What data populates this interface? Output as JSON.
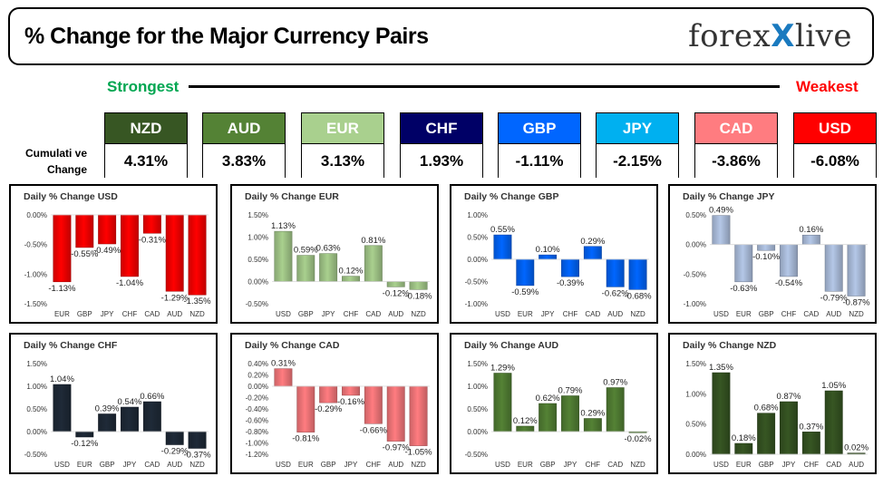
{
  "header": {
    "title": "% Change for the Major Currency Pairs",
    "logo_left": "forex",
    "logo_x": "X",
    "logo_right": "live"
  },
  "strongest_label": "Strongest",
  "weakest_label": "Weakest",
  "cumulative_label_1": "Cumulati ve",
  "cumulative_label_2": "Change",
  "cumulative": [
    {
      "currency": "NZD",
      "value": "4.31%",
      "color": "#375623"
    },
    {
      "currency": "AUD",
      "value": "3.83%",
      "color": "#548235"
    },
    {
      "currency": "EUR",
      "value": "3.13%",
      "color": "#a9d08e"
    },
    {
      "currency": "CHF",
      "value": "1.93%",
      "color": "#000066"
    },
    {
      "currency": "GBP",
      "value": "-1.11%",
      "color": "#0066ff"
    },
    {
      "currency": "JPY",
      "value": "-2.15%",
      "color": "#00b0f0"
    },
    {
      "currency": "CAD",
      "value": "-3.86%",
      "color": "#ff7c80"
    },
    {
      "currency": "USD",
      "value": "-6.08%",
      "color": "#ff0000"
    }
  ],
  "chart_data": [
    {
      "type": "bar",
      "title": "Daily % Change USD",
      "color": "#ff0000",
      "categories": [
        "EUR",
        "GBP",
        "JPY",
        "CHF",
        "CAD",
        "AUD",
        "NZD"
      ],
      "values": [
        -1.13,
        -0.55,
        -0.49,
        -1.04,
        -0.31,
        -1.29,
        -1.35
      ],
      "labels": [
        "-1.13%",
        "-0.55%",
        "-0.49%",
        "-1.04%",
        "-0.31%",
        "-1.29%",
        "-1.35%"
      ],
      "ylim": [
        -1.5,
        0
      ],
      "yticks": [
        0,
        -0.5,
        -1.0,
        -1.5
      ],
      "ytick_labels": [
        "0.00%",
        "-0.50%",
        "-1.00%",
        "-1.50%"
      ]
    },
    {
      "type": "bar",
      "title": "Daily % Change EUR",
      "color": "#a9d08e",
      "categories": [
        "USD",
        "GBP",
        "JPY",
        "CHF",
        "CAD",
        "AUD",
        "NZD"
      ],
      "values": [
        1.13,
        0.59,
        0.63,
        0.12,
        0.81,
        -0.12,
        -0.18
      ],
      "labels": [
        "1.13%",
        "0.59%",
        "0.63%",
        "0.12%",
        "0.81%",
        "-0.12%",
        "-0.18%"
      ],
      "ylim": [
        -0.5,
        1.5
      ],
      "yticks": [
        1.5,
        1.0,
        0.5,
        0,
        -0.5
      ],
      "ytick_labels": [
        "1.50%",
        "1.00%",
        "0.50%",
        "0.00%",
        "-0.50%"
      ]
    },
    {
      "type": "bar",
      "title": "Daily % Change GBP",
      "color": "#0066ff",
      "categories": [
        "USD",
        "EUR",
        "JPY",
        "CHF",
        "CAD",
        "AUD",
        "NZD"
      ],
      "values": [
        0.55,
        -0.59,
        0.1,
        -0.39,
        0.29,
        -0.62,
        -0.68
      ],
      "labels": [
        "0.55%",
        "-0.59%",
        "0.10%",
        "-0.39%",
        "0.29%",
        "-0.62%",
        "-0.68%"
      ],
      "ylim": [
        -1.0,
        1.0
      ],
      "yticks": [
        1.0,
        0.5,
        0,
        -0.5,
        -1.0
      ],
      "ytick_labels": [
        "1.00%",
        "0.50%",
        "0.00%",
        "-0.50%",
        "-1.00%"
      ]
    },
    {
      "type": "bar",
      "title": "Daily % Change JPY",
      "color": "#b4c7e7",
      "categories": [
        "USD",
        "EUR",
        "GBP",
        "CHF",
        "CAD",
        "AUD",
        "NZD"
      ],
      "values": [
        0.49,
        -0.63,
        -0.1,
        -0.54,
        0.16,
        -0.79,
        -0.87
      ],
      "labels": [
        "0.49%",
        "-0.63%",
        "-0.10%",
        "-0.54%",
        "0.16%",
        "-0.79%",
        "-0.87%"
      ],
      "ylim": [
        -1.0,
        0.5
      ],
      "yticks": [
        0.5,
        0,
        -0.5,
        -1.0
      ],
      "ytick_labels": [
        "0.50%",
        "0.00%",
        "-0.50%",
        "-1.00%"
      ]
    },
    {
      "type": "bar",
      "title": "Daily % Change CHF",
      "color": "#1f2a38",
      "categories": [
        "USD",
        "EUR",
        "GBP",
        "JPY",
        "CAD",
        "AUD",
        "NZD"
      ],
      "values": [
        1.04,
        -0.12,
        0.39,
        0.54,
        0.66,
        -0.29,
        -0.37
      ],
      "labels": [
        "1.04%",
        "-0.12%",
        "0.39%",
        "0.54%",
        "0.66%",
        "-0.29%",
        "-0.37%"
      ],
      "ylim": [
        -0.5,
        1.5
      ],
      "yticks": [
        1.5,
        1.0,
        0.5,
        0,
        -0.5
      ],
      "ytick_labels": [
        "1.50%",
        "1.00%",
        "0.50%",
        "0.00%",
        "-0.50%"
      ]
    },
    {
      "type": "bar",
      "title": "Daily % Change CAD",
      "color": "#ff7c80",
      "categories": [
        "USD",
        "EUR",
        "GBP",
        "JPY",
        "CHF",
        "AUD",
        "NZD"
      ],
      "values": [
        0.31,
        -0.81,
        -0.29,
        -0.16,
        -0.66,
        -0.97,
        -1.05
      ],
      "labels": [
        "0.31%",
        "-0.81%",
        "-0.29%",
        "-0.16%",
        "-0.66%",
        "-0.97%",
        "-1.05%"
      ],
      "ylim": [
        -1.2,
        0.4
      ],
      "yticks": [
        0.4,
        0.2,
        0,
        -0.2,
        -0.4,
        -0.6,
        -0.8,
        -1.0,
        -1.2
      ],
      "ytick_labels": [
        "0.40%",
        "0.20%",
        "0.00%",
        "-0.20%",
        "-0.40%",
        "-0.60%",
        "-0.80%",
        "-1.00%",
        "-1.20%"
      ]
    },
    {
      "type": "bar",
      "title": "Daily % Change AUD",
      "color": "#548235",
      "categories": [
        "USD",
        "EUR",
        "GBP",
        "JPY",
        "CHF",
        "CAD",
        "NZD"
      ],
      "values": [
        1.29,
        0.12,
        0.62,
        0.79,
        0.29,
        0.97,
        -0.02
      ],
      "labels": [
        "1.29%",
        "0.12%",
        "0.62%",
        "0.79%",
        "0.29%",
        "0.97%",
        "-0.02%"
      ],
      "ylim": [
        -0.5,
        1.5
      ],
      "yticks": [
        1.5,
        1.0,
        0.5,
        0,
        -0.5
      ],
      "ytick_labels": [
        "1.50%",
        "1.00%",
        "0.50%",
        "0.00%",
        "-0.50%"
      ]
    },
    {
      "type": "bar",
      "title": "Daily % Change NZD",
      "color": "#375623",
      "categories": [
        "USD",
        "EUR",
        "GBP",
        "JPY",
        "CHF",
        "CAD",
        "AUD"
      ],
      "values": [
        1.35,
        0.18,
        0.68,
        0.87,
        0.37,
        1.05,
        0.02
      ],
      "labels": [
        "1.35%",
        "0.18%",
        "0.68%",
        "0.87%",
        "0.37%",
        "1.05%",
        "0.02%"
      ],
      "ylim": [
        0,
        1.5
      ],
      "yticks": [
        1.5,
        1.0,
        0.5,
        0
      ],
      "ytick_labels": [
        "1.50%",
        "1.00%",
        "0.50%",
        "0.00%"
      ]
    }
  ]
}
